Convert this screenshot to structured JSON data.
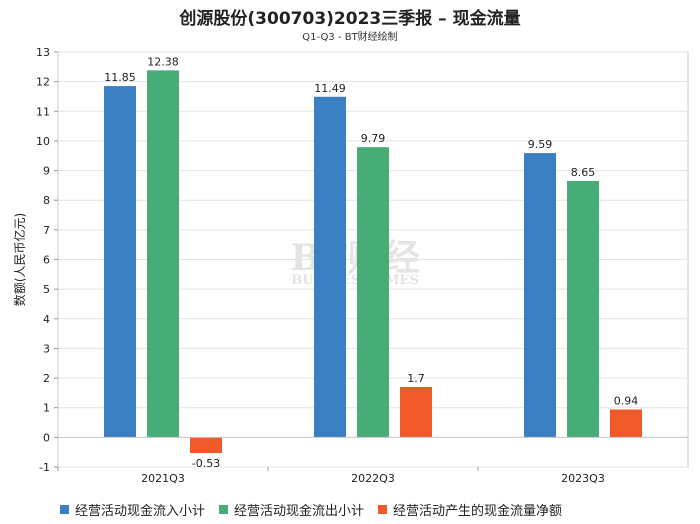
{
  "title": "创源股份(300703)2023三季报 – 现金流量",
  "subtitle": "Q1-Q3 - BT财经绘制",
  "watermark": {
    "main": "BT财经",
    "sub": "BUSINESSTIMES"
  },
  "chart_data": {
    "type": "bar",
    "title": "创源股份(300703)2023三季报 – 现金流量",
    "subtitle": "Q1-Q3 - BT财经绘制",
    "ylabel": "数额(人民币亿元)",
    "xlabel": "",
    "categories": [
      "2021Q3",
      "2022Q3",
      "2023Q3"
    ],
    "ylim": [
      -1,
      13
    ],
    "yticks": [
      -1,
      0,
      1,
      2,
      3,
      4,
      5,
      6,
      7,
      8,
      9,
      10,
      11,
      12,
      13
    ],
    "grid": true,
    "legend_position": "bottom",
    "series": [
      {
        "name": "经营活动现金流入小计",
        "color": "#3a7fc1",
        "values": [
          11.85,
          11.49,
          9.59
        ],
        "labels": [
          "11.85",
          "11.49",
          "9.59"
        ]
      },
      {
        "name": "经营活动现金流出小计",
        "color": "#46ad76",
        "values": [
          12.38,
          9.79,
          8.65
        ],
        "labels": [
          "12.38",
          "9.79",
          "8.65"
        ]
      },
      {
        "name": "经营活动产生的现金流量净额",
        "color": "#f05a28",
        "values": [
          -0.53,
          1.7,
          0.94
        ],
        "labels": [
          "-0.53",
          "1.7",
          "0.94"
        ]
      }
    ]
  }
}
